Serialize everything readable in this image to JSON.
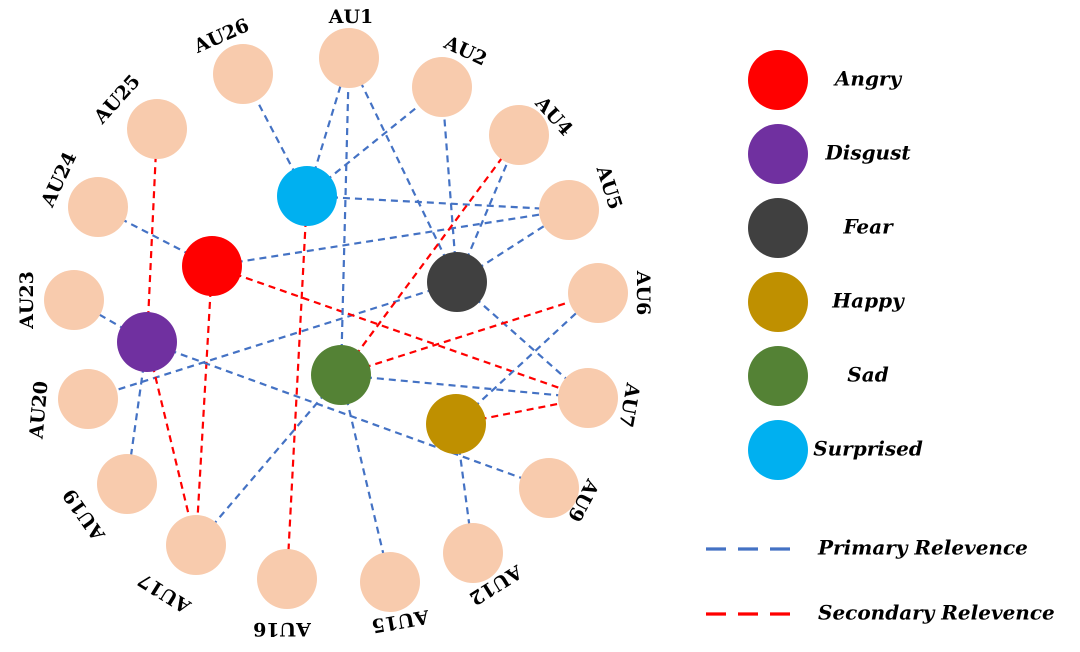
{
  "colors": {
    "au_node": "#F8CBAD",
    "primary_line": "#4472C4",
    "secondary_line": "#FF0000",
    "angry": "#FF0000",
    "disgust": "#7030A0",
    "fear": "#404040",
    "happy": "#BF9000",
    "sad": "#548235",
    "surprised": "#00B0F0"
  },
  "action_units": [
    {
      "id": "AU1",
      "label": "AU1"
    },
    {
      "id": "AU2",
      "label": "AU2"
    },
    {
      "id": "AU4",
      "label": "AU4"
    },
    {
      "id": "AU5",
      "label": "AU5"
    },
    {
      "id": "AU6",
      "label": "AU6"
    },
    {
      "id": "AU7",
      "label": "AU7"
    },
    {
      "id": "AU9",
      "label": "AU9"
    },
    {
      "id": "AU12",
      "label": "AU12"
    },
    {
      "id": "AU15",
      "label": "AU15"
    },
    {
      "id": "AU16",
      "label": "AU16"
    },
    {
      "id": "AU17",
      "label": "AU17"
    },
    {
      "id": "AU19",
      "label": "AU19"
    },
    {
      "id": "AU20",
      "label": "AU20"
    },
    {
      "id": "AU23",
      "label": "AU23"
    },
    {
      "id": "AU24",
      "label": "AU24"
    },
    {
      "id": "AU25",
      "label": "AU25"
    },
    {
      "id": "AU26",
      "label": "AU26"
    }
  ],
  "emotions": [
    {
      "id": "angry",
      "label": "Angry",
      "color": "#FF0000"
    },
    {
      "id": "disgust",
      "label": "Disgust",
      "color": "#7030A0"
    },
    {
      "id": "fear",
      "label": "Fear",
      "color": "#404040"
    },
    {
      "id": "happy",
      "label": "Happy",
      "color": "#BF9000"
    },
    {
      "id": "sad",
      "label": "Sad",
      "color": "#548235"
    },
    {
      "id": "surprised",
      "label": "Surprised",
      "color": "#00B0F0"
    }
  ],
  "links": [
    {
      "emotion": "surprised",
      "au": "AU1",
      "type": "primary"
    },
    {
      "emotion": "surprised",
      "au": "AU2",
      "type": "primary"
    },
    {
      "emotion": "surprised",
      "au": "AU26",
      "type": "primary"
    },
    {
      "emotion": "surprised",
      "au": "AU5",
      "type": "primary"
    },
    {
      "emotion": "surprised",
      "au": "AU16",
      "type": "secondary"
    },
    {
      "emotion": "fear",
      "au": "AU1",
      "type": "primary"
    },
    {
      "emotion": "fear",
      "au": "AU2",
      "type": "primary"
    },
    {
      "emotion": "fear",
      "au": "AU4",
      "type": "primary"
    },
    {
      "emotion": "fear",
      "au": "AU5",
      "type": "primary"
    },
    {
      "emotion": "fear",
      "au": "AU7",
      "type": "primary"
    },
    {
      "emotion": "fear",
      "au": "AU20",
      "type": "primary"
    },
    {
      "emotion": "angry",
      "au": "AU24",
      "type": "primary"
    },
    {
      "emotion": "angry",
      "au": "AU5",
      "type": "primary"
    },
    {
      "emotion": "angry",
      "au": "AU7",
      "type": "secondary"
    },
    {
      "emotion": "angry",
      "au": "AU17",
      "type": "secondary"
    },
    {
      "emotion": "disgust",
      "au": "AU25",
      "type": "secondary"
    },
    {
      "emotion": "disgust",
      "au": "AU9",
      "type": "primary"
    },
    {
      "emotion": "disgust",
      "au": "AU19",
      "type": "primary"
    },
    {
      "emotion": "disgust",
      "au": "AU17",
      "type": "secondary"
    },
    {
      "emotion": "disgust",
      "au": "AU23",
      "type": "primary"
    },
    {
      "emotion": "sad",
      "au": "AU1",
      "type": "primary"
    },
    {
      "emotion": "sad",
      "au": "AU4",
      "type": "secondary"
    },
    {
      "emotion": "sad",
      "au": "AU6",
      "type": "secondary"
    },
    {
      "emotion": "sad",
      "au": "AU7",
      "type": "primary"
    },
    {
      "emotion": "sad",
      "au": "AU15",
      "type": "primary"
    },
    {
      "emotion": "sad",
      "au": "AU17",
      "type": "primary"
    },
    {
      "emotion": "happy",
      "au": "AU6",
      "type": "primary"
    },
    {
      "emotion": "happy",
      "au": "AU7",
      "type": "secondary"
    },
    {
      "emotion": "happy",
      "au": "AU12",
      "type": "primary"
    }
  ],
  "legend": {
    "primary_label": "Primary Relevence",
    "secondary_label": "Secondary Relevence"
  }
}
